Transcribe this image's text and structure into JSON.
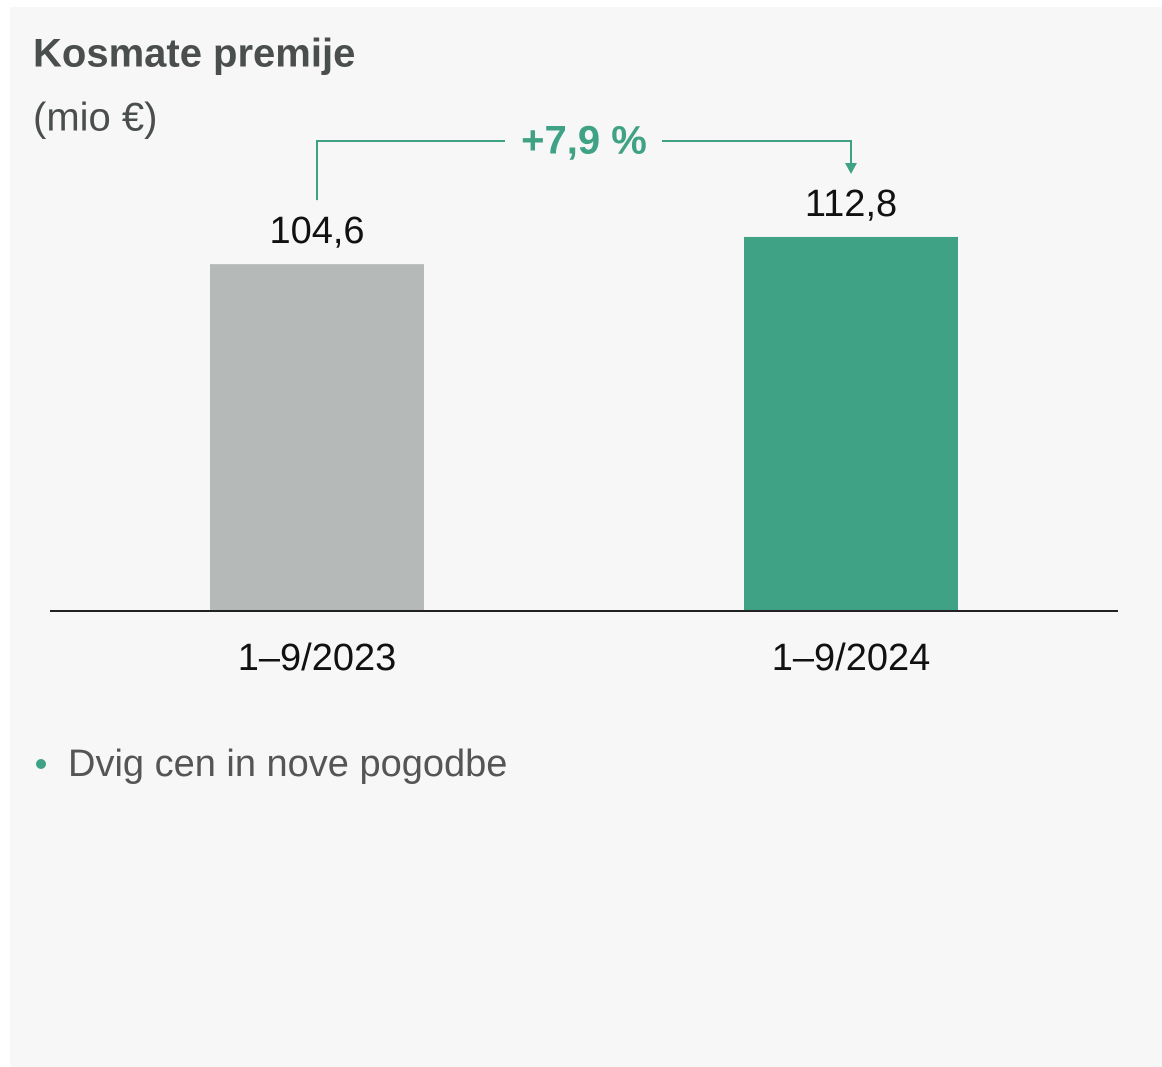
{
  "chart_data": {
    "type": "bar",
    "title": "Kosmate premije",
    "subtitle": "(mio €)",
    "categories": [
      "1–9/2023",
      "1–9/2024"
    ],
    "values": [
      104.6,
      112.8
    ],
    "value_labels": [
      "104,6",
      "112,8"
    ],
    "colors": [
      "#b5bab8",
      "#3fa284"
    ],
    "annotation": "+7,9 %",
    "note": "Dvig cen in nove pogodbe"
  }
}
